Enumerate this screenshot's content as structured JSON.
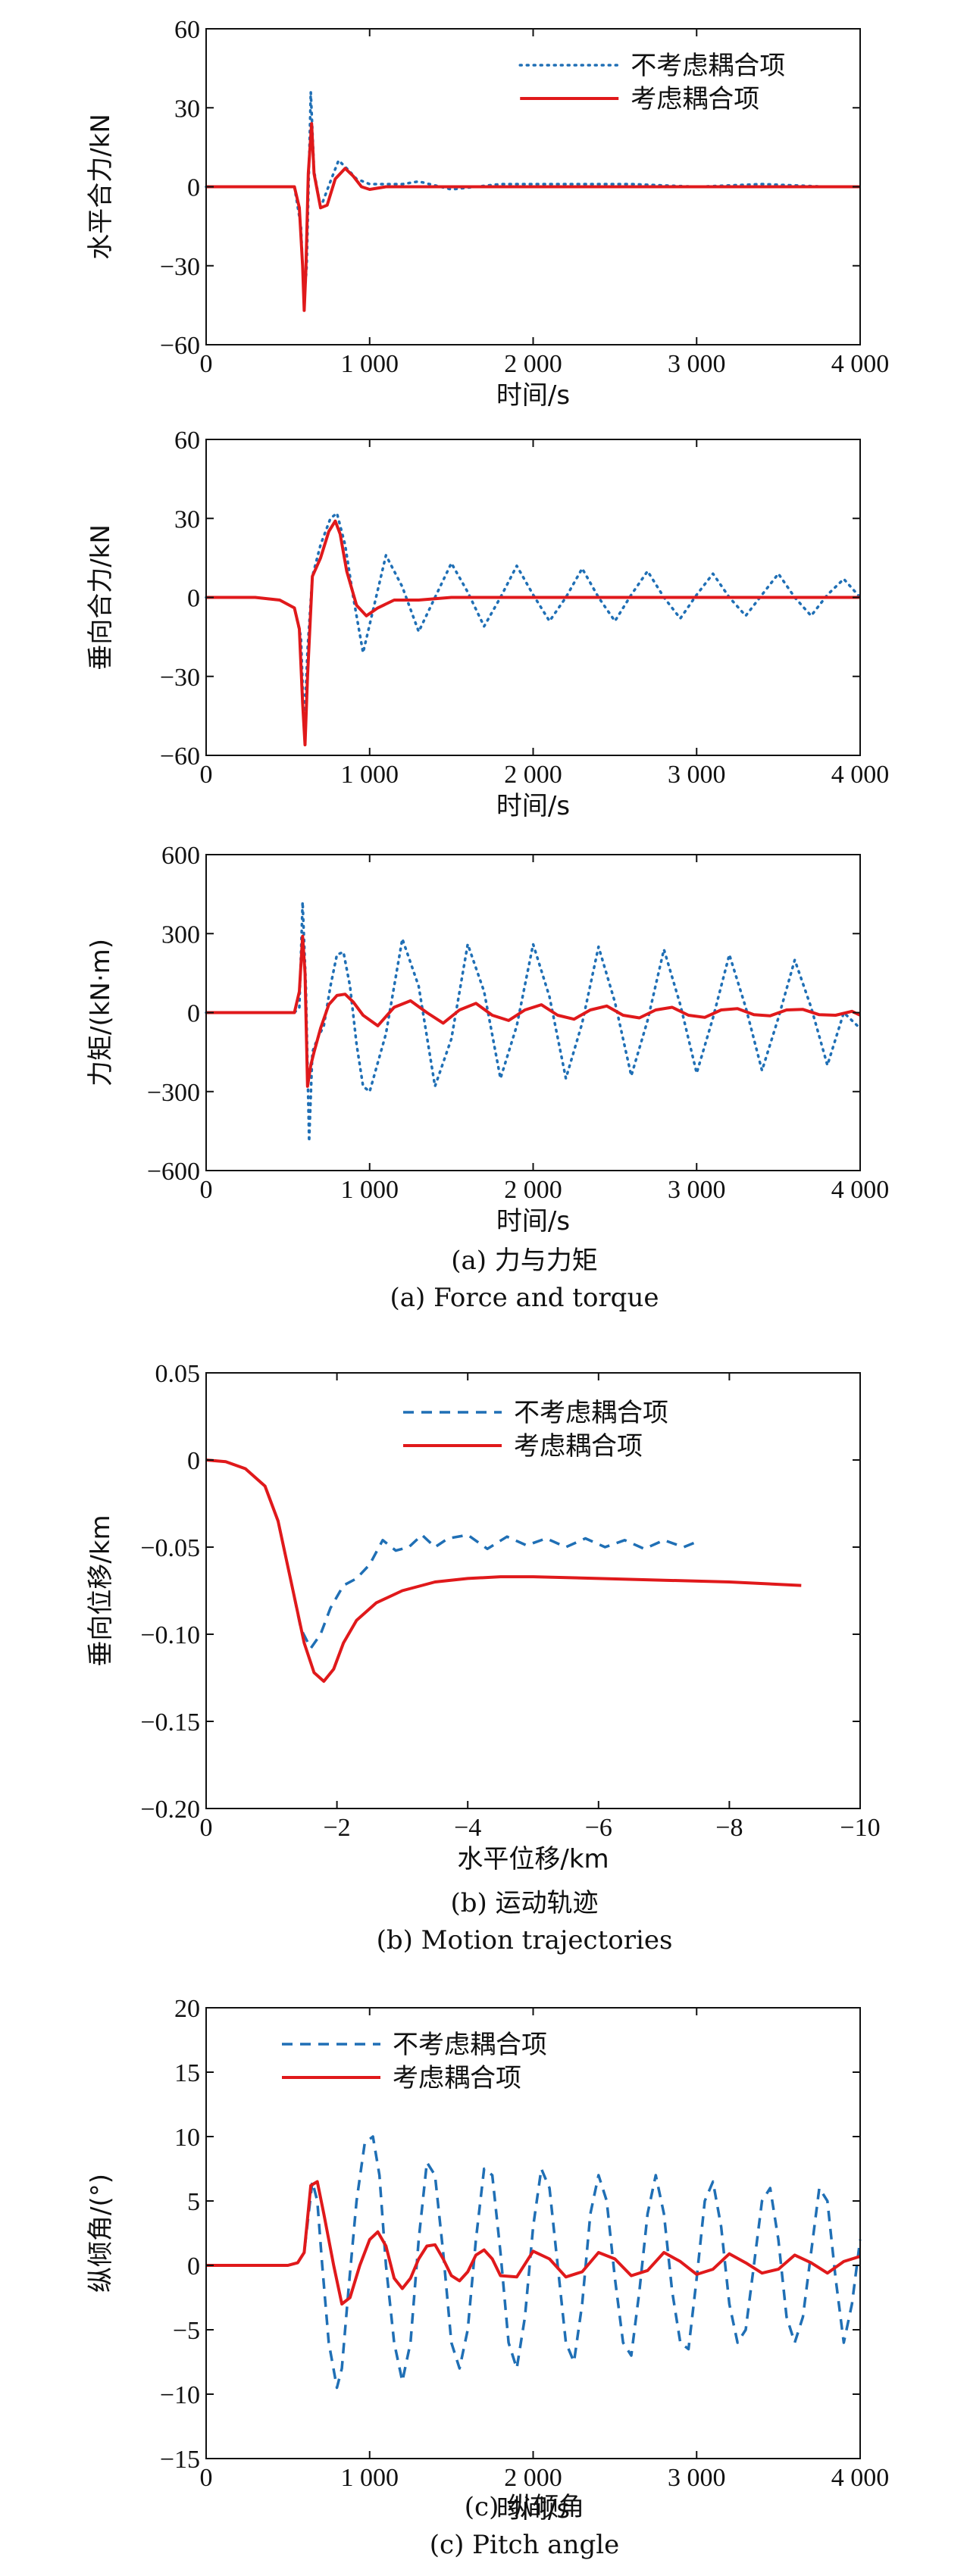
{
  "captions": {
    "a_cn": "(a) 力与力矩",
    "a_en": "(a) Force and torque",
    "b_cn": "(b) 运动轨迹",
    "b_en": "(b) Motion trajectories",
    "c_cn": "(c) 纵倾角",
    "c_en": "(c) Pitch angle"
  },
  "chart_data": [
    {
      "type": "line",
      "panel": "a1",
      "ylabel": "水平合力/kN",
      "xlabel": "时间/s",
      "xlim": [
        0,
        4000
      ],
      "ylim": [
        -60,
        60
      ],
      "xticks": [
        0,
        1000,
        2000,
        3000,
        4000
      ],
      "xtick_labels": [
        "0",
        "1 000",
        "2 000",
        "3 000",
        "4 000"
      ],
      "yticks": [
        -60,
        -30,
        0,
        30,
        60
      ],
      "ytick_labels": [
        "−60",
        "−30",
        "0",
        "30",
        "60"
      ],
      "legend": "top-right",
      "series": [
        {
          "name": "不考虑耦合项",
          "style": "dotted",
          "color": "#1f6fb5",
          "x": [
            0,
            540,
            580,
            600,
            615,
            640,
            660,
            700,
            760,
            810,
            860,
            920,
            1000,
            1200,
            1300,
            1500,
            1800,
            2200,
            2600,
            3000,
            3400,
            3800,
            4000
          ],
          "y": [
            0,
            0,
            -15,
            -44,
            -30,
            36,
            6,
            -8,
            2,
            10,
            7,
            3,
            1,
            1,
            2,
            -1,
            1,
            1,
            1,
            0,
            1,
            0,
            0
          ]
        },
        {
          "name": "考虑耦合项",
          "style": "solid",
          "color": "#e0191b",
          "x": [
            0,
            540,
            570,
            590,
            600,
            610,
            625,
            645,
            660,
            700,
            740,
            790,
            850,
            900,
            950,
            1000,
            1100,
            1300,
            1600,
            2000,
            2500,
            3000,
            3500,
            4000
          ],
          "y": [
            0,
            0,
            -8,
            -30,
            -47,
            -32,
            5,
            24,
            5,
            -8,
            -7,
            3,
            7,
            4,
            0,
            -1,
            0,
            0,
            0,
            0,
            0,
            0,
            0,
            0
          ]
        }
      ]
    },
    {
      "type": "line",
      "panel": "a2",
      "ylabel": "垂向合力/kN",
      "xlabel": "时间/s",
      "xlim": [
        0,
        4000
      ],
      "ylim": [
        -60,
        60
      ],
      "xticks": [
        0,
        1000,
        2000,
        3000,
        4000
      ],
      "xtick_labels": [
        "0",
        "1 000",
        "2 000",
        "3 000",
        "4 000"
      ],
      "yticks": [
        -60,
        -30,
        0,
        30,
        60
      ],
      "ytick_labels": [
        "−60",
        "−30",
        "0",
        "30",
        "60"
      ],
      "series": [
        {
          "name": "不考虑耦合项",
          "style": "dotted",
          "color": "#1f6fb5",
          "x": [
            0,
            300,
            450,
            540,
            580,
            600,
            620,
            650,
            700,
            760,
            800,
            850,
            900,
            960,
            1020,
            1100,
            1200,
            1300,
            1400,
            1500,
            1600,
            1700,
            1800,
            1900,
            2000,
            2100,
            2200,
            2300,
            2400,
            2500,
            2600,
            2700,
            2800,
            2900,
            3000,
            3100,
            3200,
            3300,
            3400,
            3500,
            3600,
            3700,
            3800,
            3900,
            4000
          ],
          "y": [
            0,
            0,
            -1,
            -4,
            -15,
            -50,
            -20,
            8,
            20,
            30,
            32,
            20,
            0,
            -21,
            -5,
            16,
            4,
            -13,
            0,
            13,
            2,
            -11,
            0,
            12,
            1,
            -9,
            0,
            11,
            0,
            -9,
            1,
            10,
            0,
            -8,
            1,
            9,
            0,
            -7,
            1,
            9,
            0,
            -7,
            1,
            7,
            0
          ]
        },
        {
          "name": "考虑耦合项",
          "style": "solid",
          "color": "#e0191b",
          "x": [
            0,
            300,
            450,
            540,
            570,
            590,
            605,
            620,
            650,
            700,
            750,
            790,
            820,
            860,
            920,
            980,
            1050,
            1150,
            1300,
            1500,
            1800,
            2200,
            2600,
            3000,
            3500,
            4000
          ],
          "y": [
            0,
            0,
            -1,
            -4,
            -12,
            -40,
            -56,
            -30,
            8,
            15,
            25,
            29,
            24,
            10,
            -3,
            -7,
            -4,
            -1,
            -1,
            0,
            0,
            0,
            0,
            0,
            0,
            0
          ]
        }
      ]
    },
    {
      "type": "line",
      "panel": "a3",
      "ylabel": "力矩/(kN·m)",
      "xlabel": "时间/s",
      "xlim": [
        0,
        4000
      ],
      "ylim": [
        -600,
        600
      ],
      "xticks": [
        0,
        1000,
        2000,
        3000,
        4000
      ],
      "xtick_labels": [
        "0",
        "1 000",
        "2 000",
        "3 000",
        "4 000"
      ],
      "yticks": [
        -600,
        -300,
        0,
        300,
        600
      ],
      "ytick_labels": [
        "−600",
        "−300",
        "0",
        "300",
        "600"
      ],
      "series": [
        {
          "name": "不考虑耦合项",
          "style": "dotted",
          "color": "#1f6fb5",
          "x": [
            0,
            540,
            570,
            590,
            610,
            630,
            650,
            680,
            720,
            760,
            800,
            840,
            880,
            920,
            960,
            1000,
            1100,
            1200,
            1300,
            1400,
            1500,
            1600,
            1700,
            1800,
            1900,
            2000,
            2100,
            2200,
            2300,
            2400,
            2500,
            2600,
            2700,
            2800,
            2900,
            3000,
            3100,
            3200,
            3300,
            3400,
            3500,
            3600,
            3700,
            3800,
            3900,
            4000
          ],
          "y": [
            0,
            0,
            20,
            420,
            100,
            -490,
            -150,
            -100,
            -50,
            100,
            220,
            230,
            100,
            -120,
            -280,
            -300,
            -80,
            280,
            100,
            -280,
            -100,
            260,
            80,
            -250,
            -50,
            260,
            60,
            -250,
            -40,
            250,
            40,
            -240,
            -30,
            240,
            30,
            -230,
            -20,
            220,
            20,
            -220,
            -20,
            200,
            20,
            -200,
            0,
            -60
          ]
        },
        {
          "name": "考虑耦合项",
          "style": "solid",
          "color": "#e0191b",
          "x": [
            0,
            540,
            570,
            590,
            605,
            620,
            640,
            660,
            700,
            750,
            800,
            850,
            900,
            960,
            1050,
            1150,
            1250,
            1350,
            1450,
            1550,
            1650,
            1750,
            1850,
            1950,
            2050,
            2150,
            2250,
            2350,
            2450,
            2550,
            2650,
            2750,
            2850,
            2950,
            3050,
            3150,
            3250,
            3350,
            3450,
            3550,
            3650,
            3750,
            3850,
            3950,
            4000
          ],
          "y": [
            0,
            0,
            80,
            290,
            150,
            -280,
            -200,
            -150,
            -60,
            30,
            65,
            70,
            40,
            -10,
            -50,
            20,
            45,
            0,
            -40,
            10,
            35,
            -10,
            -30,
            10,
            30,
            -10,
            -25,
            10,
            25,
            -10,
            -20,
            10,
            20,
            -10,
            -18,
            10,
            15,
            -8,
            -12,
            10,
            12,
            -8,
            -10,
            5,
            -10
          ]
        }
      ]
    },
    {
      "type": "line",
      "panel": "b",
      "ylabel": "垂向位移/km",
      "xlabel": "水平位移/km",
      "xlim": [
        0,
        -10
      ],
      "ylim": [
        -0.2,
        0.05
      ],
      "xticks": [
        0,
        -2,
        -4,
        -6,
        -8,
        -10
      ],
      "xtick_labels": [
        "0",
        "−2",
        "−4",
        "−6",
        "−8",
        "−10"
      ],
      "yticks": [
        0.05,
        0,
        -0.05,
        -0.1,
        -0.15,
        -0.2
      ],
      "ytick_labels": [
        "0.05",
        "0",
        "−0.05",
        "−0.10",
        "−0.15",
        "−0.20"
      ],
      "legend": "top-right",
      "series": [
        {
          "name": "不考虑耦合项",
          "style": "dashed",
          "color": "#1f6fb5",
          "x": [
            0,
            -0.3,
            -0.6,
            -0.9,
            -1.1,
            -1.3,
            -1.45,
            -1.6,
            -1.75,
            -1.9,
            -2.1,
            -2.3,
            -2.5,
            -2.7,
            -2.9,
            -3.1,
            -3.3,
            -3.5,
            -3.7,
            -4.0,
            -4.3,
            -4.6,
            -4.9,
            -5.2,
            -5.5,
            -5.8,
            -6.1,
            -6.4,
            -6.7,
            -7.0,
            -7.3,
            -7.5
          ],
          "y": [
            0,
            -0.001,
            -0.005,
            -0.015,
            -0.035,
            -0.07,
            -0.097,
            -0.108,
            -0.1,
            -0.085,
            -0.072,
            -0.068,
            -0.06,
            -0.046,
            -0.052,
            -0.05,
            -0.043,
            -0.05,
            -0.045,
            -0.043,
            -0.051,
            -0.044,
            -0.049,
            -0.045,
            -0.05,
            -0.045,
            -0.05,
            -0.046,
            -0.051,
            -0.046,
            -0.05,
            -0.047
          ]
        },
        {
          "name": "考虑耦合项",
          "style": "solid",
          "color": "#e0191b",
          "x": [
            0,
            -0.3,
            -0.6,
            -0.9,
            -1.1,
            -1.3,
            -1.5,
            -1.65,
            -1.8,
            -1.95,
            -2.1,
            -2.3,
            -2.6,
            -3.0,
            -3.5,
            -4.0,
            -4.5,
            -5.0,
            -6.0,
            -7.0,
            -8.0,
            -9.1
          ],
          "y": [
            0,
            -0.001,
            -0.005,
            -0.015,
            -0.035,
            -0.07,
            -0.105,
            -0.122,
            -0.127,
            -0.12,
            -0.105,
            -0.092,
            -0.082,
            -0.075,
            -0.07,
            -0.068,
            -0.067,
            -0.067,
            -0.068,
            -0.069,
            -0.07,
            -0.072
          ]
        }
      ]
    },
    {
      "type": "line",
      "panel": "c",
      "ylabel": "纵倾角/(°)",
      "xlabel": "时间/s",
      "xlim": [
        0,
        4000
      ],
      "ylim": [
        -15,
        20
      ],
      "xticks": [
        0,
        1000,
        2000,
        3000,
        4000
      ],
      "xtick_labels": [
        "0",
        "1 000",
        "2 000",
        "3 000",
        "4 000"
      ],
      "yticks": [
        -15,
        -10,
        -5,
        0,
        5,
        10,
        15,
        20
      ],
      "ytick_labels": [
        "−15",
        "−10",
        "−5",
        "0",
        "5",
        "10",
        "15",
        "20"
      ],
      "legend": "top-left",
      "series": [
        {
          "name": "不考虑耦合项",
          "style": "dashed",
          "color": "#1f6fb5",
          "x": [
            0,
            500,
            560,
            600,
            650,
            680,
            710,
            750,
            800,
            830,
            870,
            920,
            970,
            1020,
            1060,
            1100,
            1150,
            1200,
            1250,
            1300,
            1350,
            1400,
            1450,
            1500,
            1550,
            1600,
            1650,
            1700,
            1750,
            1800,
            1850,
            1900,
            1950,
            2000,
            2050,
            2100,
            2150,
            2200,
            2250,
            2300,
            2350,
            2400,
            2450,
            2500,
            2550,
            2600,
            2650,
            2700,
            2750,
            2800,
            2850,
            2900,
            2950,
            3000,
            3050,
            3100,
            3150,
            3200,
            3250,
            3300,
            3350,
            3400,
            3450,
            3500,
            3550,
            3600,
            3650,
            3700,
            3750,
            3800,
            3850,
            3900,
            3950,
            4000
          ],
          "y": [
            0,
            0,
            0.2,
            1,
            6.5,
            5,
            0,
            -6,
            -9.5,
            -8,
            -2,
            5,
            9.5,
            10,
            7,
            0,
            -6,
            -9,
            -6,
            2,
            8,
            7,
            1,
            -6,
            -8,
            -5,
            2,
            7.5,
            7,
            1,
            -6,
            -8,
            -4,
            3,
            7.5,
            6,
            0,
            -6,
            -7.5,
            -3,
            4,
            7,
            5,
            -1,
            -6,
            -7,
            -2,
            4,
            7,
            4,
            -2,
            -6,
            -6.5,
            -1,
            5,
            6.5,
            3,
            -3,
            -6,
            -5,
            0,
            5,
            6,
            2,
            -4,
            -6,
            -4,
            1,
            6,
            5,
            -1,
            -6,
            -3,
            2
          ]
        },
        {
          "name": "考虑耦合项",
          "style": "solid",
          "color": "#e0191b",
          "x": [
            0,
            500,
            560,
            600,
            640,
            680,
            720,
            780,
            830,
            880,
            940,
            1000,
            1050,
            1100,
            1150,
            1200,
            1250,
            1300,
            1350,
            1400,
            1450,
            1500,
            1550,
            1600,
            1650,
            1700,
            1750,
            1800,
            1900,
            2000,
            2100,
            2200,
            2300,
            2400,
            2500,
            2600,
            2700,
            2800,
            2900,
            3000,
            3100,
            3200,
            3300,
            3400,
            3500,
            3600,
            3700,
            3800,
            3900,
            4000
          ],
          "y": [
            0,
            0,
            0.2,
            1,
            6.2,
            6.5,
            4,
            0,
            -3,
            -2.5,
            0,
            2,
            2.6,
            1.5,
            -1,
            -1.8,
            -1,
            0.5,
            1.5,
            1.6,
            0.5,
            -0.8,
            -1.2,
            -0.5,
            0.8,
            1.2,
            0.5,
            -0.8,
            -0.9,
            1.1,
            0.5,
            -0.9,
            -0.5,
            1,
            0.5,
            -0.8,
            -0.4,
            1,
            0.3,
            -0.7,
            -0.3,
            0.9,
            0.2,
            -0.6,
            -0.3,
            0.8,
            0.2,
            -0.6,
            0.3,
            0.7
          ]
        }
      ]
    }
  ]
}
